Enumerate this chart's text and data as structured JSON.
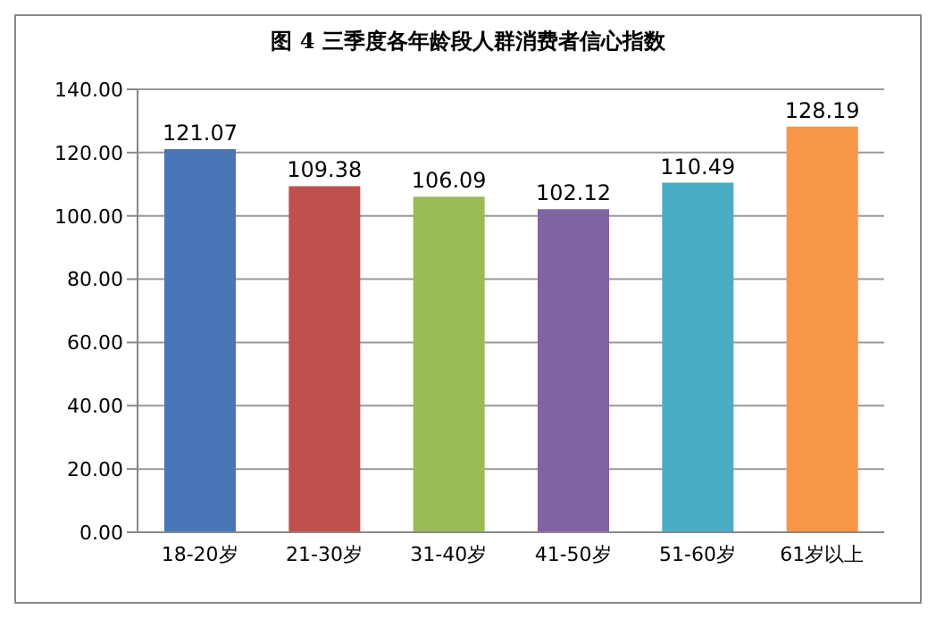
{
  "chart_data": {
    "type": "bar",
    "title": "图 4  三季度各年龄段人群消费者信心指数",
    "categories": [
      "18-20岁",
      "21-30岁",
      "31-40岁",
      "41-50岁",
      "51-60岁",
      "61岁以上"
    ],
    "values": [
      121.07,
      109.38,
      106.09,
      102.12,
      110.49,
      128.19
    ],
    "colors": [
      "#4a76b8",
      "#c0504d",
      "#9bbb59",
      "#8064a2",
      "#4bacc6",
      "#f79646"
    ],
    "ylim": [
      0,
      140
    ],
    "yticks": [
      {
        "value": 0,
        "label": "0.00"
      },
      {
        "value": 20,
        "label": "20.00"
      },
      {
        "value": 40,
        "label": "40.00"
      },
      {
        "value": 60,
        "label": "60.00"
      },
      {
        "value": 80,
        "label": "80.00"
      },
      {
        "value": 100,
        "label": "100.00"
      },
      {
        "value": 120,
        "label": "120.00"
      },
      {
        "value": 140,
        "label": "140.00"
      }
    ],
    "grid": "y",
    "data_labels": true
  }
}
